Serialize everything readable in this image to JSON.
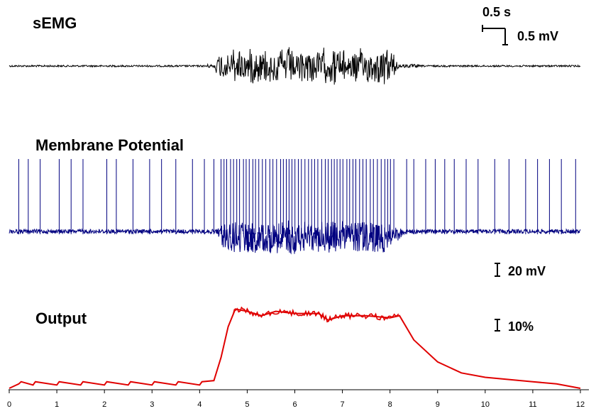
{
  "chart_data": [
    {
      "type": "line",
      "title": "sEMG",
      "series_color": "#000000",
      "description_of_data": "baseline noise 0-4.3 s, burst 4.3-8.2 s, baseline 8.2-12 s",
      "burst_window": [
        4.3,
        8.2
      ],
      "xlim": [
        0,
        12
      ]
    },
    {
      "type": "line",
      "title": "Membrane Potential",
      "series_color": "#000080",
      "xlim": [
        0,
        12
      ],
      "tonic_spike_times": [
        0.2,
        0.4,
        0.65,
        1.05,
        1.3,
        1.55,
        2.05,
        2.25,
        2.6,
        2.95,
        3.2,
        3.5,
        3.85,
        4.1,
        4.3,
        8.35,
        8.5,
        8.75,
        8.95,
        9.15,
        9.35,
        9.6,
        9.85,
        10.2,
        10.5,
        10.85,
        11.1,
        11.35,
        11.6,
        11.9
      ],
      "high_frequency_window": [
        4.45,
        8.15
      ]
    },
    {
      "type": "line",
      "title": "Output",
      "series_color": "#e00000",
      "unit": "%",
      "xlim": [
        0,
        12
      ],
      "x": [
        0,
        0.2,
        0.25,
        0.5,
        0.55,
        1.0,
        1.05,
        1.5,
        1.55,
        2.0,
        2.05,
        2.5,
        2.55,
        3.0,
        3.05,
        3.5,
        3.55,
        4.0,
        4.05,
        4.3,
        4.45,
        4.6,
        4.75,
        5.0,
        5.3,
        5.6,
        6.0,
        6.5,
        6.7,
        7.0,
        7.5,
        8.0,
        8.2,
        8.5,
        9.0,
        9.5,
        10.0,
        10.5,
        11.0,
        11.5,
        12.0
      ],
      "y": [
        0,
        2,
        3,
        1.5,
        3,
        1.5,
        3,
        1.5,
        3,
        1.5,
        3,
        1.5,
        3,
        1.5,
        3,
        1.5,
        3,
        1.5,
        3,
        3.5,
        14,
        28,
        36,
        35,
        33,
        35,
        34,
        34,
        31,
        33,
        33,
        32,
        33,
        22,
        12,
        7,
        5,
        4,
        3,
        2,
        0
      ]
    }
  ],
  "scale_bars": {
    "time": "0.5 s",
    "semg": "0.5 mV",
    "membrane": "20 mV",
    "output": "10%"
  },
  "x_axis": {
    "ticks": [
      "0",
      "1",
      "2",
      "3",
      "4",
      "5",
      "6",
      "7",
      "8",
      "9",
      "10",
      "11",
      "12"
    ]
  }
}
